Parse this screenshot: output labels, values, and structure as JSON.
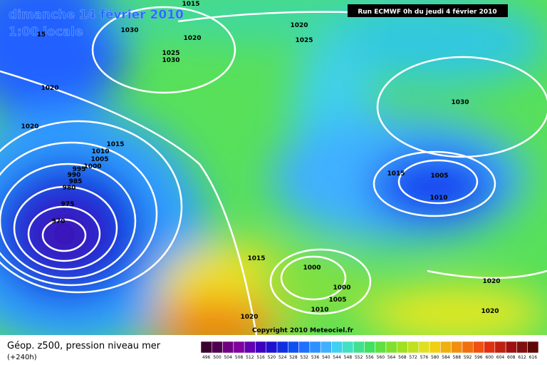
{
  "header": {
    "date": "dimanche 14 février 2010",
    "time": "1:00 locale",
    "run": "Run ECMWF 0h du jeudi 4 février 2010"
  },
  "isobar_labels": [
    "1015",
    "1030",
    "1020",
    "1025",
    "1030",
    "1020",
    "1025",
    "1020",
    "1020",
    "1015",
    "1010",
    "1005",
    "1000",
    "995",
    "990",
    "985",
    "980",
    "975",
    "970",
    "1030",
    "1015",
    "1005",
    "1010",
    "1015",
    "1000",
    "1000",
    "1005",
    "1010",
    "1020",
    "1020",
    "1020",
    "15"
  ],
  "copyright": "Copyright 2010 Meteociel.fr",
  "legend": {
    "title": "Géop. z500, pression niveau mer",
    "lead": "(+240h)",
    "scale": [
      "496",
      "500",
      "504",
      "508",
      "512",
      "516",
      "520",
      "524",
      "528",
      "532",
      "536",
      "540",
      "544",
      "548",
      "552",
      "556",
      "560",
      "564",
      "568",
      "572",
      "576",
      "580",
      "584",
      "588",
      "592",
      "596",
      "600",
      "604",
      "608",
      "612",
      "616"
    ]
  }
}
